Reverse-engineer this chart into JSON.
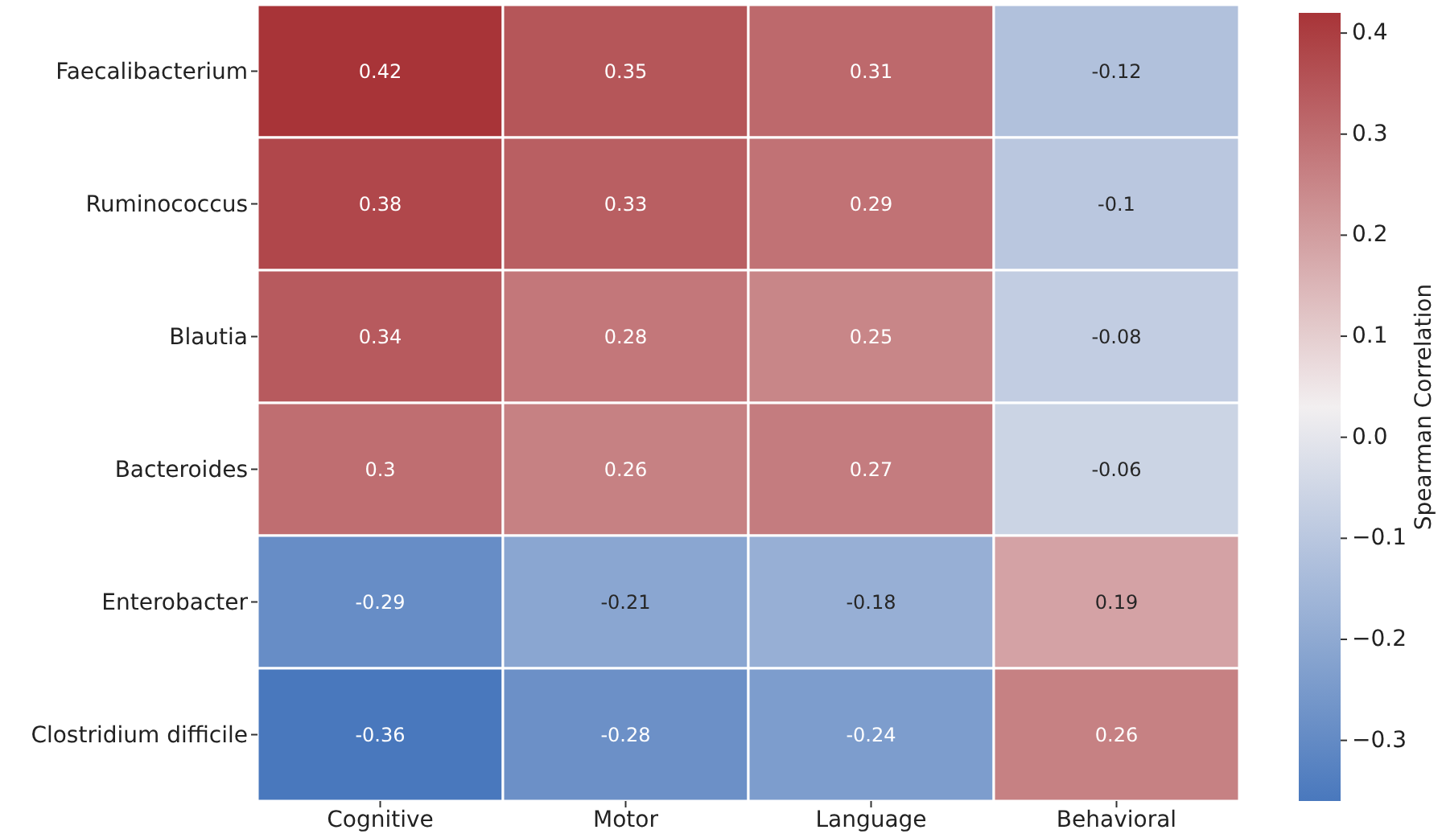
{
  "chart_data": {
    "type": "heatmap",
    "clabel": "Spearman Correlation",
    "categories": [
      "Cognitive",
      "Motor",
      "Language",
      "Behavioral"
    ],
    "y_categories": [
      "Faecalibacterium",
      "Ruminococcus",
      "Blautia",
      "Bacteroides",
      "Enterobacter",
      "Clostridium difficile"
    ],
    "cells": [
      [
        0.42,
        0.35,
        0.31,
        -0.12
      ],
      [
        0.38,
        0.33,
        0.29,
        -0.1
      ],
      [
        0.34,
        0.28,
        0.25,
        -0.08
      ],
      [
        0.3,
        0.26,
        0.27,
        -0.06
      ],
      [
        -0.29,
        -0.21,
        -0.18,
        0.19
      ],
      [
        -0.36,
        -0.28,
        -0.24,
        0.26
      ]
    ],
    "data_labels": true,
    "clim": [
      -0.36,
      0.42
    ],
    "cticks": [
      -0.3,
      -0.2,
      -0.1,
      {
        "value": 0,
        "label": "0.0"
      },
      0.1,
      0.2,
      0.3,
      0.4
    ]
  }
}
